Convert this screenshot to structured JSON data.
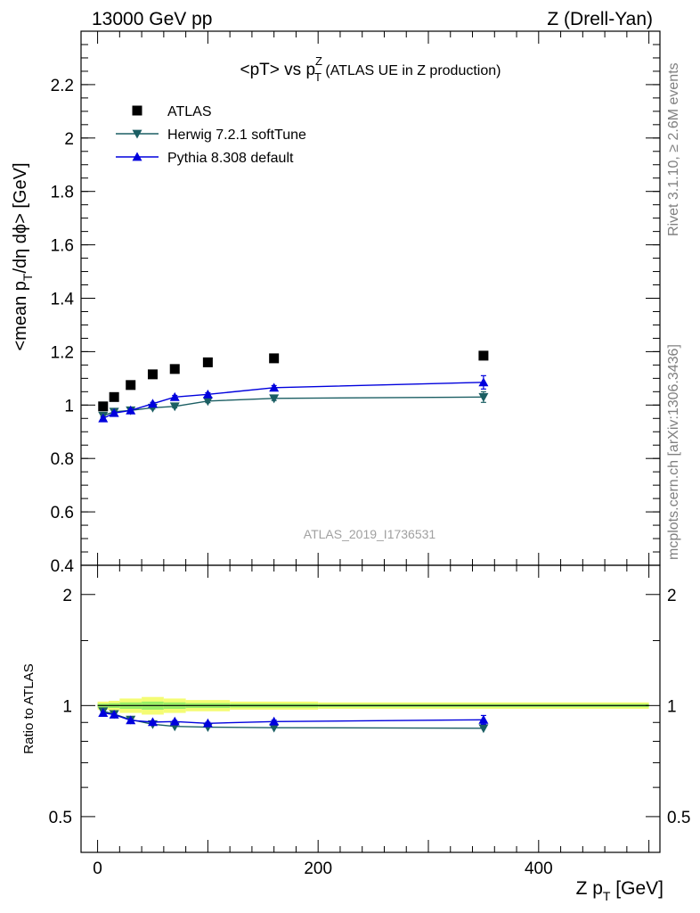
{
  "header": {
    "left": "13000 GeV pp",
    "right": "Z (Drell-Yan)"
  },
  "side_labels": {
    "rivet": "Rivet 3.1.10, ≥ 2.6M events",
    "mcplots": "mcplots.cern.ch [arXiv:1306.3436]"
  },
  "watermark": "ATLAS_2019_I1736531",
  "chart_data": [
    {
      "type": "scatter",
      "panel": "main",
      "title": {
        "prefix": "<pT> vs p",
        "sup": "Z",
        "sub": "T",
        "suffix": " (ATLAS UE in Z production)"
      },
      "ylabel": {
        "part1": "<mean p",
        "sub": "T",
        "part2": "/dη dϕ> [GeV]"
      },
      "xlim": [
        -15,
        510
      ],
      "ylim": [
        0.4,
        2.4
      ],
      "yticks": [
        0.4,
        0.6,
        0.8,
        1,
        1.2,
        1.4,
        1.6,
        1.8,
        2,
        2.2
      ],
      "yticklabels": [
        "0.4",
        "0.6",
        "0.8",
        "1",
        "1.2",
        "1.4",
        "1.6",
        "1.8",
        "2",
        "2.2"
      ],
      "legend_position": "top-left",
      "series": [
        {
          "name": "ATLAS",
          "marker": "square",
          "color": "#000000",
          "x": [
            5,
            15,
            30,
            50,
            70,
            100,
            160,
            350
          ],
          "y": [
            0.995,
            1.03,
            1.075,
            1.115,
            1.135,
            1.16,
            1.175,
            1.185
          ]
        },
        {
          "name": "Herwig 7.2.1 softTune",
          "marker": "triangle-down",
          "color": "#1b5e63",
          "x": [
            5,
            15,
            30,
            50,
            70,
            100,
            160,
            350
          ],
          "y": [
            0.96,
            0.975,
            0.98,
            0.99,
            0.995,
            1.015,
            1.025,
            1.03
          ],
          "yerr": [
            0.005,
            0.005,
            0.005,
            0.005,
            0.005,
            0.006,
            0.008,
            0.02
          ]
        },
        {
          "name": "Pythia 8.308 default",
          "marker": "triangle-up",
          "color": "#0000dd",
          "x": [
            5,
            15,
            30,
            50,
            70,
            100,
            160,
            350
          ],
          "y": [
            0.95,
            0.97,
            0.98,
            1.005,
            1.03,
            1.04,
            1.065,
            1.085
          ],
          "yerr": [
            0.005,
            0.005,
            0.005,
            0.005,
            0.006,
            0.006,
            0.008,
            0.025
          ]
        }
      ]
    },
    {
      "type": "scatter",
      "panel": "ratio",
      "ylabel": "Ratio to ATLAS",
      "xlabel": {
        "text": "Z p",
        "sub": "T",
        "unit": " [GeV]"
      },
      "xlim": [
        -15,
        510
      ],
      "xticks": [
        0,
        200,
        400
      ],
      "xticklabels": [
        "0",
        "200",
        "400"
      ],
      "ylim": [
        0.4,
        2.4
      ],
      "yscale": "log",
      "yticks": [
        0.5,
        1,
        2
      ],
      "yticklabels": [
        "0.5",
        "1",
        "2"
      ],
      "band": {
        "x_edges": [
          0,
          10,
          20,
          40,
          60,
          80,
          120,
          200,
          500
        ],
        "stat": [
          0.012,
          0.015,
          0.02,
          0.025,
          0.02,
          0.015,
          0.012,
          0.01
        ],
        "total": [
          0.025,
          0.03,
          0.045,
          0.055,
          0.045,
          0.035,
          0.025,
          0.02
        ],
        "stat_color": "#99ee66",
        "total_color": "#f4fc74"
      },
      "series": [
        {
          "name": "Herwig 7.2.1 softTune",
          "marker": "triangle-down",
          "color": "#1b5e63",
          "x": [
            5,
            15,
            30,
            50,
            70,
            100,
            160,
            350
          ],
          "y": [
            0.965,
            0.948,
            0.916,
            0.89,
            0.878,
            0.874,
            0.871,
            0.868
          ]
        },
        {
          "name": "Pythia 8.308 default",
          "marker": "triangle-up",
          "color": "#0000dd",
          "x": [
            5,
            15,
            30,
            50,
            70,
            100,
            160,
            350
          ],
          "y": [
            0.955,
            0.945,
            0.912,
            0.902,
            0.905,
            0.895,
            0.905,
            0.915
          ],
          "yerr": [
            0.005,
            0.005,
            0.005,
            0.005,
            0.006,
            0.006,
            0.008,
            0.025
          ]
        }
      ]
    }
  ]
}
